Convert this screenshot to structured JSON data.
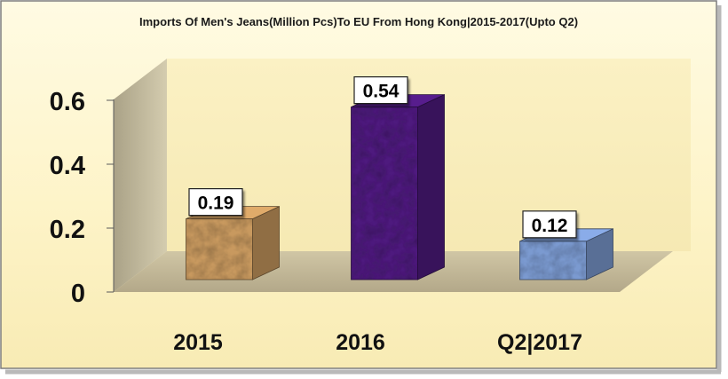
{
  "chart_data": {
    "type": "bar",
    "title": "Imports Of Men's Jeans(Million Pcs)To EU From Hong Kong|2015-2017(Upto Q2)",
    "categories": [
      "2015",
      "2016",
      "Q2|2017"
    ],
    "values": [
      0.19,
      0.54,
      0.12
    ],
    "data_labels": [
      "0.19",
      "0.54",
      "0.12"
    ],
    "ylim": [
      0,
      0.6
    ],
    "yticks": [
      0,
      0.2,
      0.4,
      0.6
    ],
    "ytick_labels": [
      "0",
      "0.2",
      "0.4",
      "0.6"
    ],
    "xlabel": "",
    "ylabel": "",
    "grid": false,
    "legend": "none",
    "style": "3d-column",
    "colors": {
      "background": "#fdf5cc",
      "walls": "#c9c0a2",
      "floor": "#c2b796",
      "bars": [
        "#c8995f",
        "#4e1a7e",
        "#7b9ad0"
      ]
    }
  }
}
